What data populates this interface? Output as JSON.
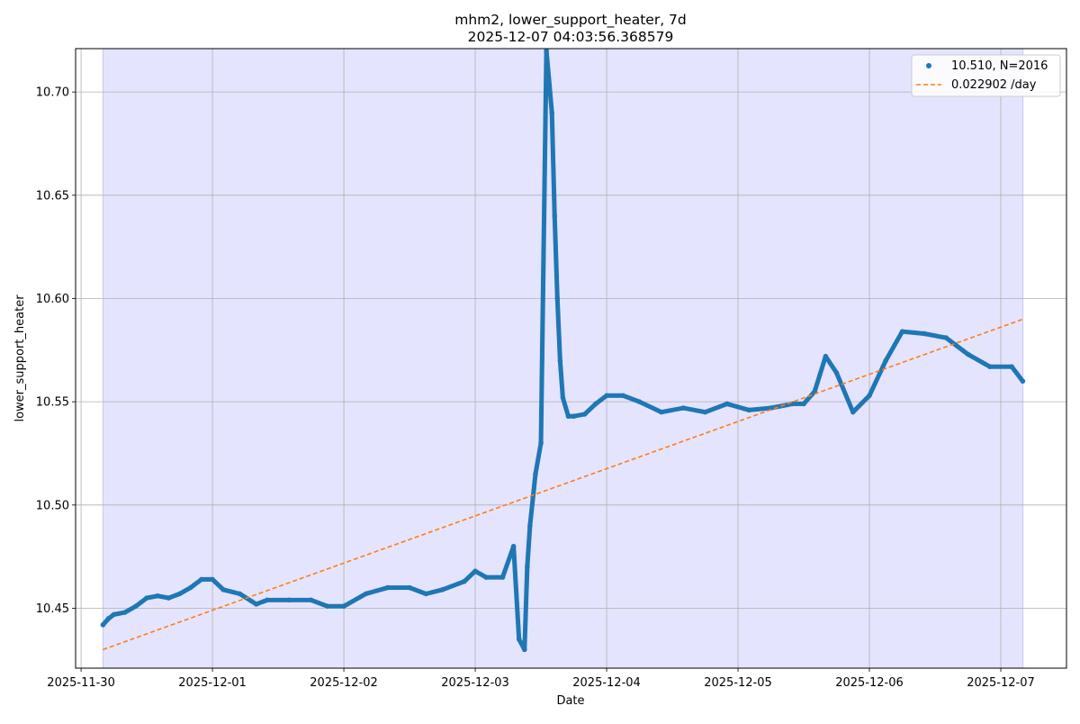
{
  "chart_data": {
    "type": "scatter",
    "title": "mhm2, lower_support_heater, 7d",
    "subtitle": "2025-12-07 04:03:56.368579",
    "xlabel": "Date",
    "ylabel": "lower_support_heater",
    "x_ticks": [
      "2025-11-30",
      "2025-12-01",
      "2025-12-02",
      "2025-12-03",
      "2025-12-04",
      "2025-12-05",
      "2025-12-06",
      "2025-12-07"
    ],
    "y_ticks": [
      "10.45",
      "10.50",
      "10.55",
      "10.60",
      "10.65",
      "10.70"
    ],
    "xlim": [
      "2025-11-29 23:00",
      "2025-12-07 12:00"
    ],
    "ylim": [
      10.421,
      10.721
    ],
    "grid": true,
    "legend_position": "top-right",
    "shaded_span": [
      "2025-11-30 04:00",
      "2025-12-07 04:03"
    ],
    "colors": {
      "points": "#1f77b4",
      "trend": "#ff7f0e",
      "shade": "#e4e4ff",
      "grid": "#b0b0b0"
    },
    "series": [
      {
        "name": "10.510, N=2016",
        "kind": "scatter",
        "x": [
          "2025-11-30 04:00",
          "2025-11-30 05:00",
          "2025-11-30 06:00",
          "2025-11-30 08:00",
          "2025-11-30 10:00",
          "2025-11-30 12:00",
          "2025-11-30 14:00",
          "2025-11-30 16:00",
          "2025-11-30 18:00",
          "2025-11-30 20:00",
          "2025-11-30 22:00",
          "2025-12-01 00:00",
          "2025-12-01 02:00",
          "2025-12-01 05:00",
          "2025-12-01 08:00",
          "2025-12-01 10:00",
          "2025-12-01 14:00",
          "2025-12-01 18:00",
          "2025-12-01 21:00",
          "2025-12-02 00:00",
          "2025-12-02 04:00",
          "2025-12-02 08:00",
          "2025-12-02 12:00",
          "2025-12-02 15:00",
          "2025-12-02 18:00",
          "2025-12-02 22:00",
          "2025-12-03 00:00",
          "2025-12-03 02:00",
          "2025-12-03 05:00",
          "2025-12-03 07:00",
          "2025-12-03 08:00",
          "2025-12-03 09:00",
          "2025-12-03 09:30",
          "2025-12-03 10:00",
          "2025-12-03 11:00",
          "2025-12-03 12:00",
          "2025-12-03 13:00",
          "2025-12-03 14:00",
          "2025-12-03 14:30",
          "2025-12-03 15:00",
          "2025-12-03 15:30",
          "2025-12-03 16:00",
          "2025-12-03 17:00",
          "2025-12-03 18:00",
          "2025-12-03 20:00",
          "2025-12-03 22:00",
          "2025-12-04 00:00",
          "2025-12-04 03:00",
          "2025-12-04 06:00",
          "2025-12-04 10:00",
          "2025-12-04 14:00",
          "2025-12-04 18:00",
          "2025-12-04 22:00",
          "2025-12-05 02:00",
          "2025-12-05 06:00",
          "2025-12-05 10:00",
          "2025-12-05 12:00",
          "2025-12-05 14:00",
          "2025-12-05 16:00",
          "2025-12-05 18:00",
          "2025-12-05 21:00",
          "2025-12-06 00:00",
          "2025-12-06 03:00",
          "2025-12-06 06:00",
          "2025-12-06 10:00",
          "2025-12-06 14:00",
          "2025-12-06 18:00",
          "2025-12-06 22:00",
          "2025-12-07 02:00",
          "2025-12-07 04:00"
        ],
        "y": [
          10.442,
          10.445,
          10.447,
          10.448,
          10.451,
          10.455,
          10.456,
          10.455,
          10.457,
          10.46,
          10.464,
          10.464,
          10.459,
          10.457,
          10.452,
          10.454,
          10.454,
          10.454,
          10.451,
          10.451,
          10.457,
          10.46,
          10.46,
          10.457,
          10.459,
          10.463,
          10.468,
          10.465,
          10.465,
          10.48,
          10.435,
          10.43,
          10.47,
          10.49,
          10.515,
          10.53,
          10.72,
          10.69,
          10.64,
          10.6,
          10.57,
          10.552,
          10.543,
          10.543,
          10.544,
          10.549,
          10.553,
          10.553,
          10.55,
          10.545,
          10.547,
          10.545,
          10.549,
          10.546,
          10.547,
          10.549,
          10.549,
          10.555,
          10.572,
          10.564,
          10.545,
          10.553,
          10.57,
          10.584,
          10.583,
          10.581,
          10.573,
          10.567,
          10.567,
          10.56
        ]
      },
      {
        "name": "0.022902 /day",
        "kind": "line",
        "x": [
          "2025-11-30 04:00",
          "2025-12-07 04:03"
        ],
        "y": [
          10.43,
          10.59
        ]
      }
    ]
  }
}
